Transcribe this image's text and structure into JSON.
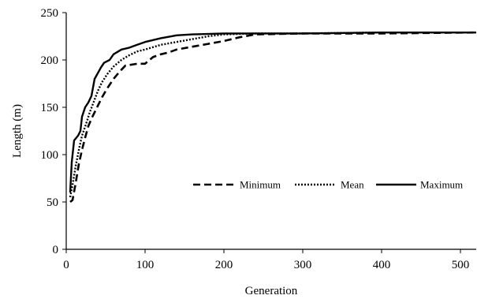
{
  "chart_data": {
    "type": "line",
    "title": "",
    "xlabel": "Generation",
    "ylabel": "Length (m)",
    "xlim": [
      0,
      520
    ],
    "ylim": [
      0,
      250
    ],
    "x_ticks": [
      "0",
      "100",
      "200",
      "300",
      "400",
      "500"
    ],
    "y_ticks": [
      "0",
      "50",
      "100",
      "150",
      "200",
      "250"
    ],
    "grid": false,
    "legend_position": "right-middle",
    "series": [
      {
        "name": "Minimum",
        "style": "dashed",
        "color": "#000000",
        "points": [
          [
            5,
            50
          ],
          [
            8,
            52
          ],
          [
            12,
            70
          ],
          [
            16,
            90
          ],
          [
            20,
            105
          ],
          [
            24,
            118
          ],
          [
            28,
            130
          ],
          [
            32,
            138
          ],
          [
            38,
            148
          ],
          [
            45,
            160
          ],
          [
            52,
            170
          ],
          [
            60,
            180
          ],
          [
            68,
            188
          ],
          [
            75,
            194
          ],
          [
            90,
            196
          ],
          [
            100,
            196
          ],
          [
            110,
            203
          ],
          [
            120,
            206
          ],
          [
            130,
            208
          ],
          [
            140,
            211
          ],
          [
            160,
            214
          ],
          [
            180,
            217
          ],
          [
            200,
            220
          ],
          [
            220,
            224
          ],
          [
            240,
            227
          ],
          [
            300,
            228
          ],
          [
            400,
            228
          ],
          [
            520,
            229
          ]
        ]
      },
      {
        "name": "Mean",
        "style": "dotted",
        "color": "#000000",
        "points": [
          [
            5,
            55
          ],
          [
            8,
            68
          ],
          [
            12,
            88
          ],
          [
            16,
            105
          ],
          [
            20,
            120
          ],
          [
            25,
            132
          ],
          [
            30,
            145
          ],
          [
            35,
            156
          ],
          [
            40,
            167
          ],
          [
            45,
            176
          ],
          [
            52,
            185
          ],
          [
            60,
            193
          ],
          [
            70,
            200
          ],
          [
            80,
            205
          ],
          [
            90,
            209
          ],
          [
            100,
            211
          ],
          [
            120,
            216
          ],
          [
            140,
            219
          ],
          [
            160,
            222
          ],
          [
            180,
            225
          ],
          [
            200,
            227
          ],
          [
            240,
            228
          ],
          [
            300,
            228
          ],
          [
            400,
            229
          ],
          [
            520,
            229
          ]
        ]
      },
      {
        "name": "Maximum",
        "style": "solid",
        "color": "#000000",
        "points": [
          [
            5,
            60
          ],
          [
            7,
            92
          ],
          [
            10,
            115
          ],
          [
            15,
            120
          ],
          [
            18,
            125
          ],
          [
            20,
            140
          ],
          [
            24,
            150
          ],
          [
            28,
            155
          ],
          [
            32,
            162
          ],
          [
            36,
            180
          ],
          [
            40,
            186
          ],
          [
            44,
            192
          ],
          [
            48,
            197
          ],
          [
            55,
            200
          ],
          [
            60,
            206
          ],
          [
            70,
            211
          ],
          [
            80,
            213
          ],
          [
            90,
            216
          ],
          [
            100,
            219
          ],
          [
            110,
            221
          ],
          [
            120,
            223
          ],
          [
            140,
            226
          ],
          [
            160,
            227
          ],
          [
            200,
            228
          ],
          [
            300,
            228
          ],
          [
            400,
            229
          ],
          [
            520,
            229
          ]
        ]
      }
    ]
  }
}
